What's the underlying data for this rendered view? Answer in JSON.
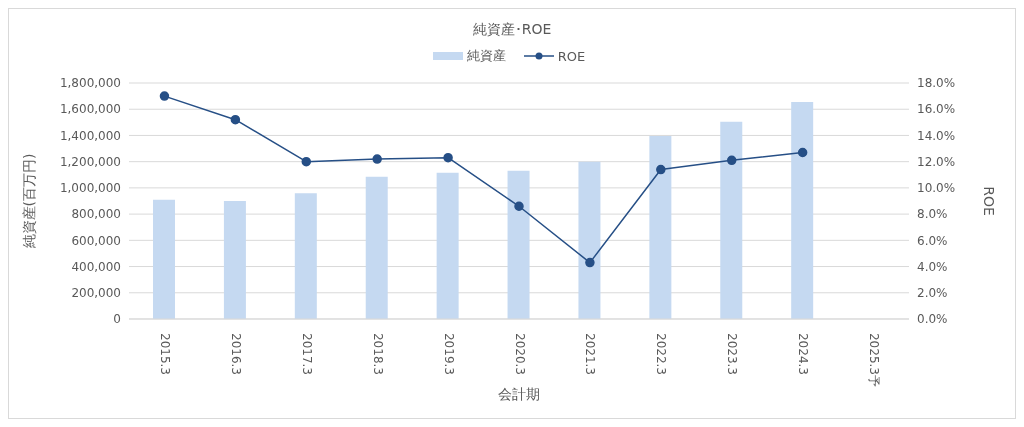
{
  "chart_data": {
    "type": "bar",
    "title": "純資産･ROE",
    "xlabel": "会計期",
    "ylabel": "純資産(百万円)",
    "y2label": "ROE",
    "categories": [
      "2015.3",
      "2016.3",
      "2017.3",
      "2018.3",
      "2019.3",
      "2020.3",
      "2021.3",
      "2022.3",
      "2023.3",
      "2024.3",
      "2025.3予"
    ],
    "series": [
      {
        "name": "純資産",
        "color": "#c5d9f1",
        "values": [
          910000,
          900000,
          960000,
          1085000,
          1115000,
          1130000,
          1200000,
          1395000,
          1505000,
          1655000,
          null
        ]
      },
      {
        "name": "ROE",
        "type": "line",
        "axis": "y2",
        "color": "#264f86",
        "values": [
          17.0,
          15.2,
          12.0,
          12.2,
          12.3,
          8.6,
          4.3,
          11.4,
          12.1,
          12.7,
          null
        ]
      }
    ],
    "ylim": [
      0,
      1800000
    ],
    "yticks": [
      0,
      {
        "value": 200000,
        "label": "200,000"
      },
      {
        "value": 400000,
        "label": "400,000"
      },
      {
        "value": 600000,
        "label": "600,000"
      },
      {
        "value": 800000,
        "label": "800,000"
      },
      {
        "value": 1000000,
        "label": "1,000,000"
      },
      {
        "value": 1200000,
        "label": "1,200,000"
      },
      {
        "value": 1400000,
        "label": "1,400,000"
      },
      {
        "value": 1600000,
        "label": "1,600,000"
      },
      {
        "value": 1800000,
        "label": "1,800,000"
      }
    ],
    "y2lim": [
      0,
      18
    ],
    "y2ticks": [
      {
        "value": 0,
        "label": "0.0%"
      },
      {
        "value": 2,
        "label": "2.0%"
      },
      {
        "value": 4,
        "label": "4.0%"
      },
      {
        "value": 6,
        "label": "6.0%"
      },
      {
        "value": 8,
        "label": "8.0%"
      },
      {
        "value": 10,
        "label": "10.0%"
      },
      {
        "value": 12,
        "label": "12.0%"
      },
      {
        "value": 14,
        "label": "14.0%"
      },
      {
        "value": 16,
        "label": "16.0%"
      },
      {
        "value": 18,
        "label": "18.0%"
      }
    ],
    "grid": "y",
    "legend": "top",
    "marker": "circle",
    "line_style": "solid"
  }
}
